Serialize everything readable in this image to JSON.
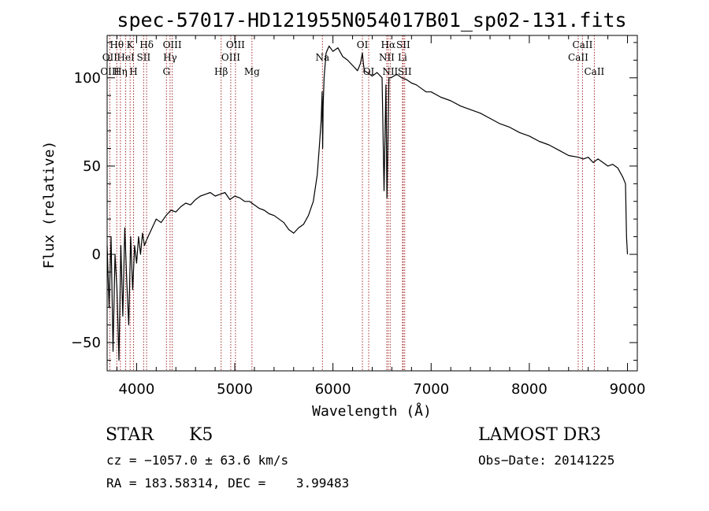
{
  "chart_data": {
    "type": "line",
    "title": "spec-57017-HD121955N054017B01_sp02-131.fits",
    "xlabel": "Wavelength (Å)",
    "ylabel": "Flux (relative)",
    "xlim": [
      3700,
      9100
    ],
    "ylim": [
      -66,
      124
    ],
    "xticks": [
      4000,
      5000,
      6000,
      7000,
      8000,
      9000
    ],
    "yticks": [
      -50,
      0,
      50,
      100
    ],
    "grid": false,
    "series": [
      {
        "values_x": [
          3700,
          3720,
          3740,
          3760,
          3780,
          3800,
          3820,
          3840,
          3860,
          3880,
          3900,
          3920,
          3940,
          3960,
          3980,
          4000,
          4020,
          4040,
          4060,
          4080,
          4100,
          4150,
          4200,
          4250,
          4300,
          4350,
          4400,
          4450,
          4500,
          4550,
          4600,
          4650,
          4700,
          4750,
          4800,
          4850,
          4900,
          4950,
          5000,
          5050,
          5100,
          5150,
          5200,
          5250,
          5300,
          5350,
          5400,
          5450,
          5500,
          5550,
          5600,
          5650,
          5700,
          5750,
          5800,
          5840,
          5860,
          5880,
          5890,
          5895,
          5900,
          5910,
          5930,
          5960,
          6000,
          6050,
          6100,
          6150,
          6200,
          6250,
          6280,
          6300,
          6310,
          6320,
          6350,
          6400,
          6450,
          6500,
          6520,
          6540,
          6550,
          6562,
          6570,
          6590,
          6620,
          6650,
          6700,
          6750,
          6800,
          6850,
          6900,
          6950,
          7000,
          7100,
          7200,
          7300,
          7400,
          7500,
          7600,
          7700,
          7800,
          7900,
          8000,
          8100,
          8200,
          8300,
          8400,
          8500,
          8550,
          8600,
          8650,
          8700,
          8750,
          8800,
          8850,
          8900,
          8950,
          8980,
          8990,
          9000
        ],
        "values_y": [
          5,
          -30,
          10,
          -55,
          0,
          -20,
          -60,
          5,
          -35,
          15,
          -15,
          -40,
          10,
          -20,
          5,
          -5,
          10,
          0,
          12,
          5,
          8,
          14,
          20,
          18,
          22,
          25,
          24,
          27,
          29,
          28,
          31,
          33,
          34,
          35,
          33,
          34,
          35,
          31,
          33,
          32,
          30,
          30,
          28,
          26,
          25,
          23,
          22,
          20,
          18,
          14,
          12,
          15,
          17,
          22,
          30,
          45,
          60,
          76,
          92,
          60,
          84,
          100,
          114,
          118,
          115,
          117,
          112,
          110,
          107,
          104,
          108,
          114,
          108,
          104,
          103,
          101,
          103,
          100,
          36,
          96,
          32,
          70,
          100,
          100,
          101,
          102,
          100,
          99,
          97,
          96,
          94,
          92,
          92,
          89,
          87,
          84,
          82,
          80,
          77,
          74,
          72,
          69,
          67,
          64,
          62,
          59,
          56,
          55,
          54,
          55,
          52,
          54,
          52,
          50,
          51,
          49,
          44,
          40,
          10,
          0
        ]
      }
    ],
    "spectral_lines": [
      {
        "label": "Hθ",
        "x": 3798,
        "row": 1
      },
      {
        "label": "OII",
        "x": 3727,
        "row": 2
      },
      {
        "label": "OIII",
        "x": 3727,
        "row": 3
      },
      {
        "label": "Hη",
        "x": 3835,
        "row": 3
      },
      {
        "label": "HeI",
        "x": 3889,
        "row": 2
      },
      {
        "label": "K",
        "x": 3934,
        "row": 1
      },
      {
        "label": "H",
        "x": 3969,
        "row": 3
      },
      {
        "label": "SII",
        "x": 4072,
        "row": 2
      },
      {
        "label": "Hδ",
        "x": 4102,
        "row": 1
      },
      {
        "label": "OIII",
        "x": 4363,
        "row": 1
      },
      {
        "label": "Hγ",
        "x": 4341,
        "row": 2
      },
      {
        "label": "G",
        "x": 4304,
        "row": 3
      },
      {
        "label": "Hβ",
        "x": 4861,
        "row": 3
      },
      {
        "label": "OIII",
        "x": 5007,
        "row": 1
      },
      {
        "label": "OIII",
        "x": 4959,
        "row": 2
      },
      {
        "label": "Mg",
        "x": 5175,
        "row": 3
      },
      {
        "label": "Na",
        "x": 5893,
        "row": 2
      },
      {
        "label": "OI",
        "x": 6300,
        "row": 1
      },
      {
        "label": "OI",
        "x": 6364,
        "row": 3
      },
      {
        "label": "Hα",
        "x": 6563,
        "row": 1
      },
      {
        "label": "SII",
        "x": 6716,
        "row": 1
      },
      {
        "label": "NII",
        "x": 6548,
        "row": 2
      },
      {
        "label": "Li",
        "x": 6708,
        "row": 2
      },
      {
        "label": "NII",
        "x": 6583,
        "row": 3
      },
      {
        "label": "SII",
        "x": 6731,
        "row": 3
      },
      {
        "label": "CaII",
        "x": 8542,
        "row": 1
      },
      {
        "label": "CaII",
        "x": 8498,
        "row": 2
      },
      {
        "label": "CaII",
        "x": 8662,
        "row": 3
      }
    ],
    "line_color": "#000000",
    "marker_color": "#a52a2a"
  },
  "info": {
    "class": "STAR",
    "subclass": "K5",
    "survey": "LAMOST DR3",
    "cz": "cz = −1057.0 ± 63.6 km/s",
    "obs_date": "Obs−Date: 20141225",
    "radec": "RA = 183.58314, DEC =    3.99483"
  }
}
